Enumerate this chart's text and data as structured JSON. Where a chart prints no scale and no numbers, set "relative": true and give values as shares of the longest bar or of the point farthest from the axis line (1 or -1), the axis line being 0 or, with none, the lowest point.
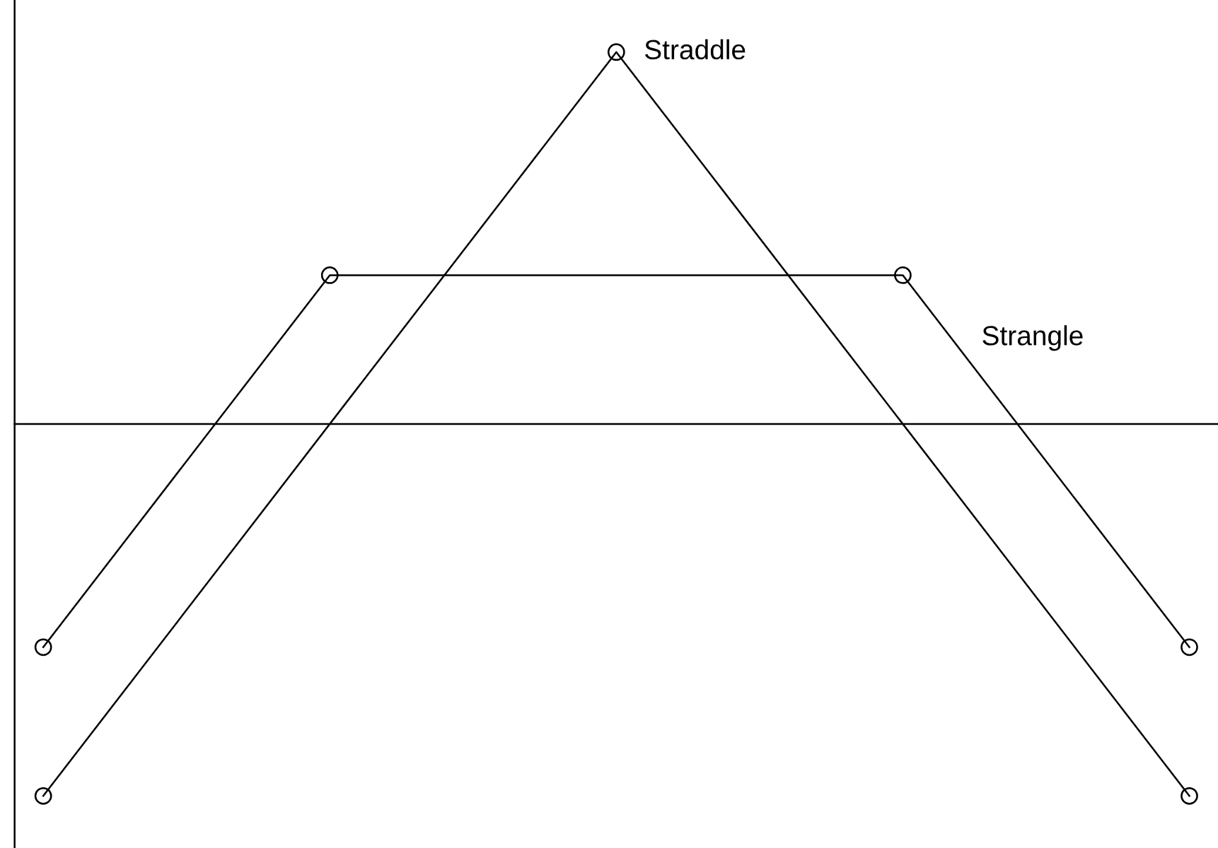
{
  "chart_data": {
    "type": "line",
    "relative": true,
    "marker": "circle",
    "line_style": "solid",
    "categories": [
      null,
      null,
      null,
      null,
      null
    ],
    "series": [
      {
        "name": "Straddle",
        "color": "#000000",
        "values": [
          -1,
          null,
          1,
          null,
          -1
        ]
      },
      {
        "name": "Strangle",
        "color": "#000000",
        "values": [
          -0.6,
          0.4,
          null,
          0.4,
          -0.6
        ]
      }
    ]
  }
}
